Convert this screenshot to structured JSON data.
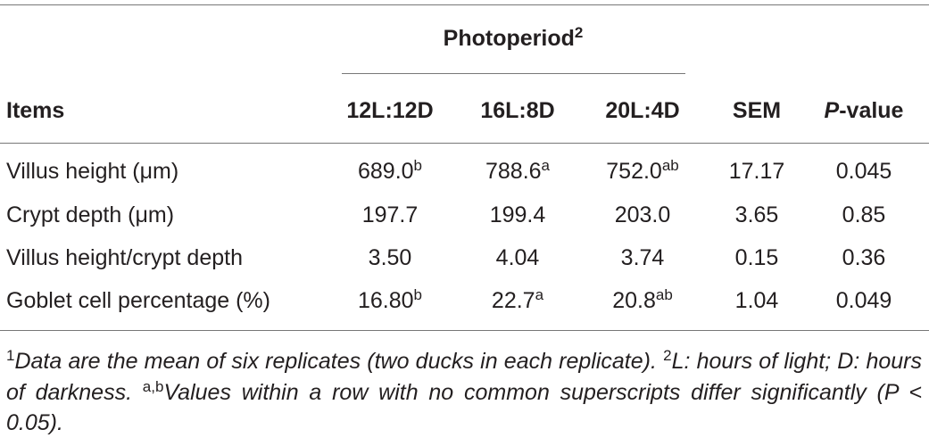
{
  "table": {
    "group_header": {
      "text": "Photoperiod",
      "sup": "2"
    },
    "columns": [
      "Items",
      "12L:12D",
      "16L:8D",
      "20L:4D",
      "SEM"
    ],
    "p_column": {
      "italic": "P",
      "rest": "-value"
    },
    "rows": [
      [
        {
          "text": "Villus height (μm)"
        },
        {
          "text": "689.0",
          "sup": "b"
        },
        {
          "text": "788.6",
          "sup": "a"
        },
        {
          "text": "752.0",
          "sup": "ab"
        },
        {
          "text": "17.17"
        },
        {
          "text": "0.045"
        }
      ],
      [
        {
          "text": "Crypt depth (μm)"
        },
        {
          "text": "197.7"
        },
        {
          "text": "199.4"
        },
        {
          "text": "203.0"
        },
        {
          "text": "3.65"
        },
        {
          "text": "0.85"
        }
      ],
      [
        {
          "text": "Villus height/crypt depth"
        },
        {
          "text": "3.50"
        },
        {
          "text": "4.04"
        },
        {
          "text": "3.74"
        },
        {
          "text": "0.15"
        },
        {
          "text": "0.36"
        }
      ],
      [
        {
          "text": "Goblet cell percentage (%)"
        },
        {
          "text": "16.80",
          "sup": "b"
        },
        {
          "text": "22.7",
          "sup": "a"
        },
        {
          "text": "20.8",
          "sup": "ab"
        },
        {
          "text": "1.04"
        },
        {
          "text": "0.049"
        }
      ]
    ]
  },
  "footnote": [
    {
      "sup": "1"
    },
    {
      "italic": "Data are the mean of six replicates (two ducks in each replicate). "
    },
    {
      "sup": "2"
    },
    {
      "italic": "L: hours of light; D: hours of darkness. "
    },
    {
      "sup": "a,b"
    },
    {
      "italic": "Values within a row with no common superscripts differ significantly (P < 0.05)."
    }
  ]
}
